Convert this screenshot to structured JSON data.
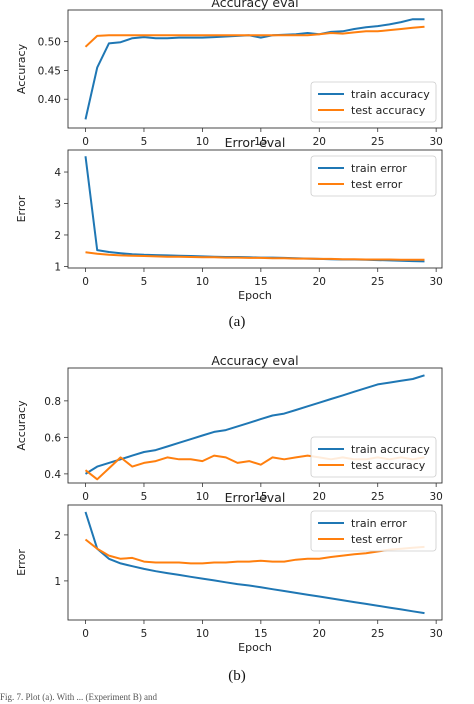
{
  "chart_data": [
    {
      "type": "line",
      "title": "Accuracy eval",
      "xlabel": "",
      "ylabel": "Accuracy",
      "xlim": [
        -1.5,
        30.5
      ],
      "ylim": [
        0.35,
        0.555
      ],
      "xticks": [
        0,
        5,
        10,
        15,
        20,
        25,
        30
      ],
      "yticks": [
        0.4,
        0.45,
        0.5
      ],
      "ytick_labels": [
        "0.40",
        "0.45",
        "0.50"
      ],
      "legend_position": "lower-right",
      "grid": false,
      "series": [
        {
          "name": "train accuracy",
          "color": "#1f77b4",
          "x": [
            0,
            1,
            2,
            3,
            4,
            5,
            6,
            7,
            8,
            9,
            10,
            11,
            12,
            13,
            14,
            15,
            16,
            17,
            18,
            19,
            20,
            21,
            22,
            23,
            24,
            25,
            26,
            27,
            28,
            29
          ],
          "y": [
            0.365,
            0.455,
            0.497,
            0.499,
            0.506,
            0.508,
            0.506,
            0.506,
            0.507,
            0.507,
            0.507,
            0.508,
            0.509,
            0.51,
            0.511,
            0.507,
            0.511,
            0.512,
            0.513,
            0.515,
            0.513,
            0.517,
            0.518,
            0.522,
            0.525,
            0.527,
            0.53,
            0.534,
            0.539,
            0.539
          ]
        },
        {
          "name": "test accuracy",
          "color": "#ff7f0e",
          "x": [
            0,
            1,
            2,
            3,
            4,
            5,
            6,
            7,
            8,
            9,
            10,
            11,
            12,
            13,
            14,
            15,
            16,
            17,
            18,
            19,
            20,
            21,
            22,
            23,
            24,
            25,
            26,
            27,
            28,
            29
          ],
          "y": [
            0.491,
            0.51,
            0.511,
            0.511,
            0.511,
            0.511,
            0.511,
            0.511,
            0.511,
            0.511,
            0.511,
            0.511,
            0.511,
            0.511,
            0.511,
            0.511,
            0.511,
            0.511,
            0.511,
            0.511,
            0.513,
            0.515,
            0.514,
            0.516,
            0.518,
            0.518,
            0.52,
            0.522,
            0.524,
            0.526
          ]
        }
      ]
    },
    {
      "type": "line",
      "title": "Error eval",
      "xlabel": "Epoch",
      "ylabel": "Error",
      "xlim": [
        -1.5,
        30.5
      ],
      "ylim": [
        0.95,
        4.7
      ],
      "xticks": [
        0,
        5,
        10,
        15,
        20,
        25,
        30
      ],
      "yticks": [
        1,
        2,
        3,
        4
      ],
      "legend_position": "upper-right",
      "grid": false,
      "series": [
        {
          "name": "train error",
          "color": "#1f77b4",
          "x": [
            0,
            1,
            2,
            3,
            4,
            5,
            6,
            7,
            8,
            9,
            10,
            11,
            12,
            13,
            14,
            15,
            16,
            17,
            18,
            19,
            20,
            21,
            22,
            23,
            24,
            25,
            26,
            27,
            28,
            29
          ],
          "y": [
            4.5,
            1.52,
            1.46,
            1.42,
            1.39,
            1.37,
            1.36,
            1.35,
            1.34,
            1.33,
            1.32,
            1.31,
            1.3,
            1.3,
            1.29,
            1.28,
            1.28,
            1.27,
            1.26,
            1.25,
            1.24,
            1.23,
            1.22,
            1.22,
            1.21,
            1.2,
            1.19,
            1.18,
            1.17,
            1.16
          ]
        },
        {
          "name": "test error",
          "color": "#ff7f0e",
          "x": [
            0,
            1,
            2,
            3,
            4,
            5,
            6,
            7,
            8,
            9,
            10,
            11,
            12,
            13,
            14,
            15,
            16,
            17,
            18,
            19,
            20,
            21,
            22,
            23,
            24,
            25,
            26,
            27,
            28,
            29
          ],
          "y": [
            1.45,
            1.4,
            1.37,
            1.35,
            1.34,
            1.33,
            1.32,
            1.31,
            1.31,
            1.3,
            1.29,
            1.29,
            1.28,
            1.28,
            1.27,
            1.27,
            1.26,
            1.26,
            1.25,
            1.25,
            1.24,
            1.24,
            1.23,
            1.23,
            1.22,
            1.22,
            1.22,
            1.21,
            1.21,
            1.21
          ]
        }
      ]
    },
    {
      "type": "line",
      "title": "Accuracy eval",
      "xlabel": "",
      "ylabel": "Accuracy",
      "xlim": [
        -1.5,
        30.5
      ],
      "ylim": [
        0.35,
        0.98
      ],
      "xticks": [
        0,
        5,
        10,
        15,
        20,
        25,
        30
      ],
      "yticks": [
        0.4,
        0.6,
        0.8
      ],
      "ytick_labels": [
        "0.4",
        "0.6",
        "0.8"
      ],
      "legend_position": "lower-right",
      "grid": false,
      "series": [
        {
          "name": "train accuracy",
          "color": "#1f77b4",
          "x": [
            0,
            1,
            2,
            3,
            4,
            5,
            6,
            7,
            8,
            9,
            10,
            11,
            12,
            13,
            14,
            15,
            16,
            17,
            18,
            19,
            20,
            21,
            22,
            23,
            24,
            25,
            26,
            27,
            28,
            29
          ],
          "y": [
            0.4,
            0.44,
            0.46,
            0.48,
            0.5,
            0.52,
            0.53,
            0.55,
            0.57,
            0.59,
            0.61,
            0.63,
            0.64,
            0.66,
            0.68,
            0.7,
            0.72,
            0.73,
            0.75,
            0.77,
            0.79,
            0.81,
            0.83,
            0.85,
            0.87,
            0.89,
            0.9,
            0.91,
            0.92,
            0.94
          ]
        },
        {
          "name": "test accuracy",
          "color": "#ff7f0e",
          "x": [
            0,
            1,
            2,
            3,
            4,
            5,
            6,
            7,
            8,
            9,
            10,
            11,
            12,
            13,
            14,
            15,
            16,
            17,
            18,
            19,
            20,
            21,
            22,
            23,
            24,
            25,
            26,
            27,
            28,
            29
          ],
          "y": [
            0.42,
            0.37,
            0.43,
            0.49,
            0.44,
            0.46,
            0.47,
            0.49,
            0.48,
            0.48,
            0.47,
            0.5,
            0.49,
            0.46,
            0.47,
            0.45,
            0.49,
            0.48,
            0.49,
            0.5,
            0.49,
            0.48,
            0.49,
            0.48,
            0.48,
            0.49,
            0.48,
            0.49,
            0.48,
            0.49
          ]
        }
      ]
    },
    {
      "type": "line",
      "title": "Error eval",
      "xlabel": "Epoch",
      "ylabel": "Error",
      "xlim": [
        -1.5,
        30.5
      ],
      "ylim": [
        0.15,
        2.65
      ],
      "xticks": [
        0,
        5,
        10,
        15,
        20,
        25,
        30
      ],
      "yticks": [
        1,
        2
      ],
      "legend_position": "upper-right",
      "grid": false,
      "series": [
        {
          "name": "train error",
          "color": "#1f77b4",
          "x": [
            0,
            1,
            2,
            3,
            4,
            5,
            6,
            7,
            8,
            9,
            10,
            11,
            12,
            13,
            14,
            15,
            16,
            17,
            18,
            19,
            20,
            21,
            22,
            23,
            24,
            25,
            26,
            27,
            28,
            29
          ],
          "y": [
            2.5,
            1.7,
            1.48,
            1.38,
            1.32,
            1.26,
            1.21,
            1.17,
            1.13,
            1.09,
            1.05,
            1.01,
            0.97,
            0.93,
            0.9,
            0.86,
            0.82,
            0.78,
            0.74,
            0.7,
            0.66,
            0.62,
            0.58,
            0.54,
            0.5,
            0.46,
            0.42,
            0.38,
            0.34,
            0.3
          ]
        },
        {
          "name": "test error",
          "color": "#ff7f0e",
          "x": [
            0,
            1,
            2,
            3,
            4,
            5,
            6,
            7,
            8,
            9,
            10,
            11,
            12,
            13,
            14,
            15,
            16,
            17,
            18,
            19,
            20,
            21,
            22,
            23,
            24,
            25,
            26,
            27,
            28,
            29
          ],
          "y": [
            1.9,
            1.7,
            1.55,
            1.48,
            1.5,
            1.42,
            1.4,
            1.4,
            1.4,
            1.38,
            1.38,
            1.4,
            1.4,
            1.42,
            1.42,
            1.44,
            1.42,
            1.42,
            1.46,
            1.48,
            1.48,
            1.52,
            1.55,
            1.58,
            1.6,
            1.64,
            1.68,
            1.7,
            1.72,
            1.74
          ]
        }
      ]
    }
  ],
  "captions": {
    "a": "(a)",
    "b": "(b)",
    "figure_line": "Fig. 7. Plot (a). With ... (Experiment B) and"
  }
}
